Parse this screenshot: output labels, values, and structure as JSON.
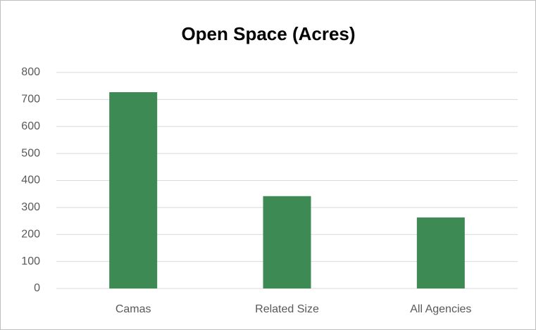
{
  "chart_data": {
    "type": "bar",
    "title": "Open Space (Acres)",
    "categories": [
      "Camas",
      "Related Size",
      "All Agencies"
    ],
    "values": [
      727,
      342,
      263
    ],
    "color": "#3d8a55",
    "ylim": [
      0,
      800
    ],
    "yticks": [
      0,
      100,
      200,
      300,
      400,
      500,
      600,
      700,
      800
    ],
    "grid": true
  }
}
